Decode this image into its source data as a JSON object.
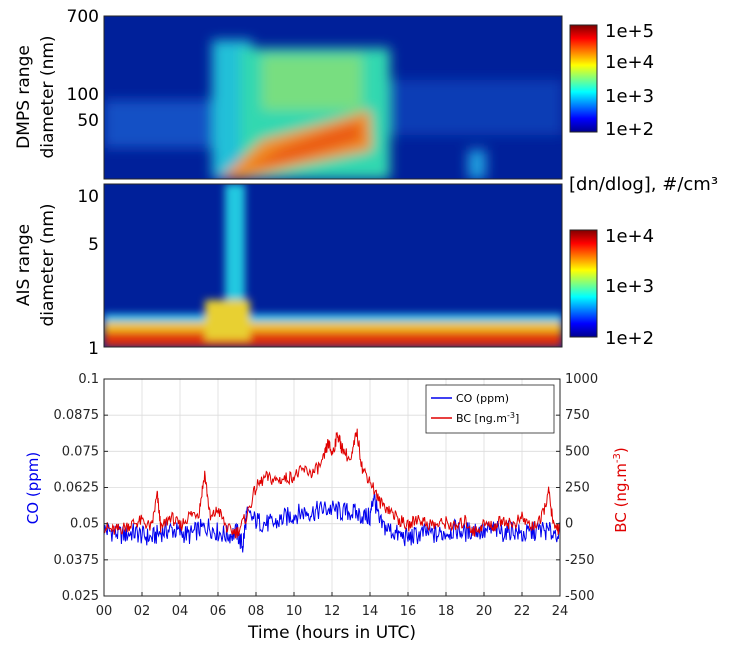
{
  "colors": {
    "co": "#0000ee",
    "bc": "#e00000",
    "axis": "#262626",
    "grid": "#dcdcdc"
  },
  "dmps_panel": {
    "ylabel_line1": "DMPS range",
    "ylabel_line2": "diameter (nm)",
    "yticks": [
      "700",
      "100",
      "50"
    ],
    "colorbar_ticks": [
      "1e+5",
      "1e+4",
      "1e+3",
      "1e+2"
    ]
  },
  "unit_label": "[dn/dlog], #/cm³",
  "ais_panel": {
    "ylabel_line1": "AIS range",
    "ylabel_line2": "diameter (nm)",
    "yticks": [
      "10",
      "5",
      "1"
    ],
    "colorbar_ticks": [
      "1e+4",
      "1e+3",
      "1e+2"
    ]
  },
  "chart_data": {
    "type": "line",
    "xlabel": "Time (hours in UTC)",
    "xlim": [
      0,
      24
    ],
    "x_ticks": [
      "00",
      "02",
      "04",
      "06",
      "08",
      "10",
      "12",
      "14",
      "16",
      "18",
      "20",
      "22",
      "24"
    ],
    "y_left": {
      "label": "CO (ppm)",
      "lim": [
        0.025,
        0.1
      ],
      "ticks": [
        "0.1",
        "0.0875",
        "0.075",
        "0.0625",
        "0.05",
        "0.0375",
        "0.025"
      ]
    },
    "y_right": {
      "label_main": "BC (ng.m",
      "label_sup": "-3",
      "label_end": ")",
      "lim": [
        -500,
        1000
      ],
      "ticks": [
        "1000",
        "750",
        "500",
        "250",
        "0",
        "-250",
        "-500"
      ]
    },
    "grid": true,
    "legend_position": "top-right",
    "series": [
      {
        "name": "CO (ppm)",
        "axis": "left",
        "x": [
          0,
          0.5,
          1,
          1.5,
          2,
          2.5,
          3,
          3.5,
          4,
          4.5,
          5,
          5.5,
          6,
          6.5,
          7,
          7.3,
          7.5,
          8,
          8.5,
          9,
          9.5,
          10,
          10.5,
          11,
          11.5,
          12,
          12.5,
          13,
          13.5,
          14,
          14.2,
          14.5,
          15,
          15.5,
          16,
          16.5,
          17,
          17.5,
          18,
          18.5,
          19,
          19.5,
          20,
          20.5,
          21,
          21.5,
          22,
          22.5,
          23,
          23.5,
          24
        ],
        "y": [
          0.048,
          0.047,
          0.046,
          0.047,
          0.046,
          0.045,
          0.047,
          0.048,
          0.047,
          0.046,
          0.048,
          0.049,
          0.047,
          0.046,
          0.047,
          0.042,
          0.053,
          0.051,
          0.05,
          0.05,
          0.052,
          0.053,
          0.054,
          0.054,
          0.055,
          0.055,
          0.054,
          0.054,
          0.053,
          0.052,
          0.06,
          0.05,
          0.048,
          0.046,
          0.045,
          0.046,
          0.047,
          0.046,
          0.047,
          0.048,
          0.047,
          0.048,
          0.047,
          0.048,
          0.047,
          0.048,
          0.046,
          0.047,
          0.048,
          0.047,
          0.047
        ]
      },
      {
        "name": "BC [ng.m-3]",
        "axis": "right",
        "x": [
          0,
          0.5,
          1,
          1.5,
          2,
          2.5,
          2.8,
          3,
          3.5,
          4,
          4.5,
          5,
          5.3,
          5.6,
          6,
          6.5,
          7,
          7.5,
          8,
          8.5,
          9,
          9.5,
          10,
          10.5,
          11,
          11.5,
          11.8,
          12,
          12.3,
          12.5,
          13,
          13.3,
          13.6,
          14,
          14.5,
          15,
          15.5,
          16,
          16.5,
          17,
          17.5,
          18,
          18.5,
          19,
          19.5,
          20,
          20.5,
          21,
          21.5,
          22,
          22.5,
          23,
          23.4,
          23.7,
          24
        ],
        "y": [
          -20,
          -50,
          -30,
          0,
          20,
          -30,
          200,
          -40,
          50,
          -20,
          60,
          80,
          350,
          30,
          100,
          -40,
          -60,
          50,
          250,
          320,
          300,
          310,
          330,
          370,
          350,
          420,
          560,
          480,
          620,
          530,
          430,
          640,
          380,
          300,
          150,
          100,
          30,
          -20,
          40,
          0,
          -10,
          10,
          -30,
          20,
          -60,
          0,
          -20,
          30,
          -10,
          40,
          -20,
          20,
          220,
          -40,
          -20
        ]
      }
    ]
  }
}
